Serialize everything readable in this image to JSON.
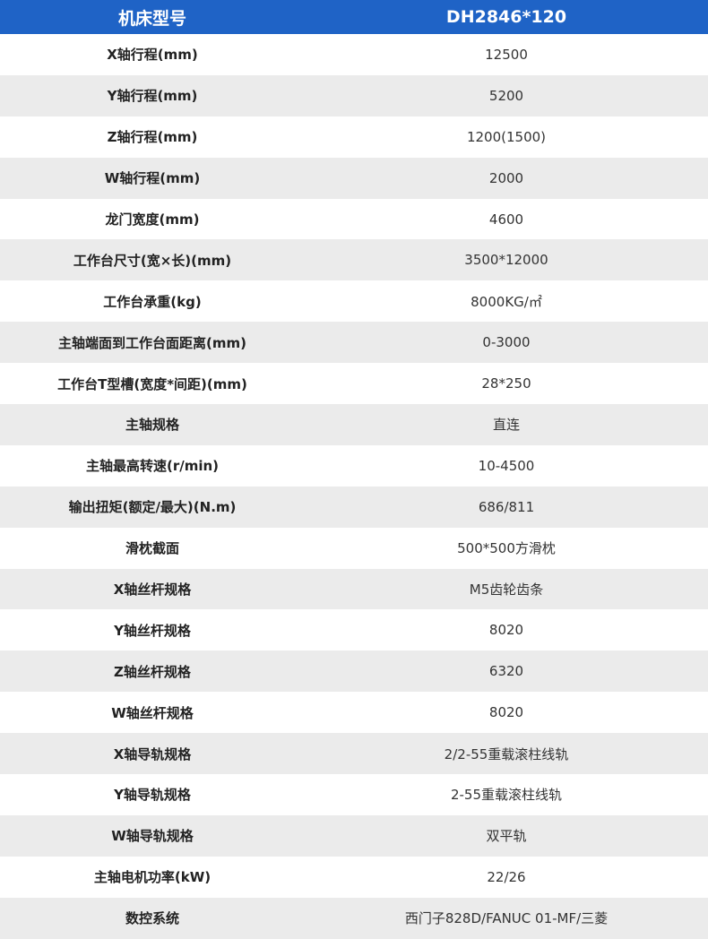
{
  "table": {
    "header": [
      "机床型号",
      "DH2846*120"
    ],
    "rows": [
      [
        "X轴行程(mm)",
        "12500"
      ],
      [
        "Y轴行程(mm)",
        "5200"
      ],
      [
        "Z轴行程(mm)",
        "1200(1500)"
      ],
      [
        "W轴行程(mm)",
        "2000"
      ],
      [
        "龙门宽度(mm)",
        "4600"
      ],
      [
        "工作台尺寸(宽×长)(mm)",
        "3500*12000"
      ],
      [
        "工作台承重(kg)",
        "8000KG/㎡"
      ],
      [
        "主轴端面到工作台面距离(mm)",
        "0-3000"
      ],
      [
        "工作台T型槽(宽度*间距)(mm)",
        "28*250"
      ],
      [
        "主轴规格",
        "直连"
      ],
      [
        "主轴最高转速(r/min)",
        "10-4500"
      ],
      [
        "输出扭矩(额定/最大)(N.m)",
        "686/811"
      ],
      [
        "滑枕截面",
        "500*500方滑枕"
      ],
      [
        "X轴丝杆规格",
        "M5齿轮齿条"
      ],
      [
        "Y轴丝杆规格",
        "8020"
      ],
      [
        "Z轴丝杆规格",
        "6320"
      ],
      [
        "W轴丝杆规格",
        "8020"
      ],
      [
        "X轴导轨规格",
        "2/2-55重载滚柱线轨"
      ],
      [
        "Y轴导轨规格",
        "2-55重载滚柱线轨"
      ],
      [
        "W轴导轨规格",
        "双平轨"
      ],
      [
        "主轴电机功率(kW)",
        "22/26"
      ],
      [
        "数控系统",
        "西门子828D/FANUC 01-MF/三菱"
      ]
    ]
  }
}
